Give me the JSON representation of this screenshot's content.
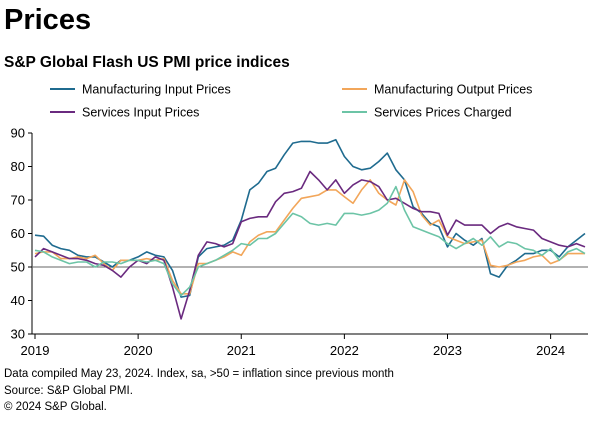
{
  "header": {
    "heading": "Prices",
    "chart_title": "S&P Global Flash US PMI price indices"
  },
  "footer": {
    "line1": "Data compiled May 23, 2024. Index, sa, >50 = inflation since previous month",
    "line2": "Source: S&P Global PMI.",
    "line3": "© 2024 S&P Global."
  },
  "chart_data": {
    "type": "line",
    "title": "S&P Global Flash US PMI price indices",
    "xlabel": "",
    "ylabel": "",
    "ylim": [
      30,
      90
    ],
    "yticks": [
      30,
      40,
      50,
      60,
      70,
      80,
      90
    ],
    "xlim": [
      "2019-01",
      "2024-05"
    ],
    "xtick_labels": [
      "2019",
      "2020",
      "2021",
      "2022",
      "2023",
      "2024"
    ],
    "reference_line": 50,
    "grid": false,
    "legend_position": "top",
    "x": [
      "2019-01",
      "2019-02",
      "2019-03",
      "2019-04",
      "2019-05",
      "2019-06",
      "2019-07",
      "2019-08",
      "2019-09",
      "2019-10",
      "2019-11",
      "2019-12",
      "2020-01",
      "2020-02",
      "2020-03",
      "2020-04",
      "2020-05",
      "2020-06",
      "2020-07",
      "2020-08",
      "2020-09",
      "2020-10",
      "2020-11",
      "2020-12",
      "2021-01",
      "2021-02",
      "2021-03",
      "2021-04",
      "2021-05",
      "2021-06",
      "2021-07",
      "2021-08",
      "2021-09",
      "2021-10",
      "2021-11",
      "2021-12",
      "2022-01",
      "2022-02",
      "2022-03",
      "2022-04",
      "2022-05",
      "2022-06",
      "2022-07",
      "2022-08",
      "2022-09",
      "2022-10",
      "2022-11",
      "2022-12",
      "2023-01",
      "2023-02",
      "2023-03",
      "2023-04",
      "2023-05",
      "2023-06",
      "2023-07",
      "2023-08",
      "2023-09",
      "2023-10",
      "2023-11",
      "2023-12",
      "2024-01",
      "2024-02",
      "2024-03",
      "2024-04",
      "2024-05"
    ],
    "series": [
      {
        "name": "Manufacturing Input Prices",
        "color": "#1f6b8f",
        "values": [
          59.5,
          59.2,
          56.5,
          55.5,
          55,
          53.5,
          53,
          53,
          51.5,
          50,
          52,
          52,
          53,
          54.5,
          53.5,
          53,
          49,
          41,
          41.5,
          53,
          55.5,
          56,
          56.5,
          58,
          64,
          73,
          75,
          78.5,
          79.5,
          83.5,
          87,
          87.5,
          87.5,
          87,
          87,
          88,
          83,
          80,
          79,
          79.5,
          81.5,
          84,
          79,
          76,
          68,
          66,
          63,
          62,
          56,
          60,
          58,
          56.5,
          58.5,
          48,
          47,
          50.5,
          52,
          54,
          54,
          55,
          55,
          53,
          56,
          58,
          60
        ]
      },
      {
        "name": "Manufacturing Output Prices",
        "color": "#f2a65a",
        "values": [
          54,
          54.5,
          54.5,
          52.5,
          52.5,
          53,
          52.5,
          53.5,
          51,
          49,
          52,
          52,
          52,
          52.5,
          52,
          52.5,
          46,
          42,
          42,
          51,
          51,
          52,
          53,
          54.5,
          53.5,
          57.5,
          59.5,
          60.5,
          60.5,
          64,
          67.5,
          70.5,
          71,
          71.5,
          73,
          73,
          71,
          69,
          73,
          76,
          72,
          70,
          68.5,
          76,
          72.5,
          65.5,
          62.5,
          64,
          59,
          58,
          57,
          57.5,
          58,
          50.5,
          50,
          50.5,
          51.5,
          52,
          53,
          53.5,
          51,
          52,
          54,
          54,
          54
        ]
      },
      {
        "name": "Services Input Prices",
        "color": "#6a2a7f",
        "values": [
          53,
          55.5,
          54.5,
          53.5,
          52.5,
          52.5,
          52,
          51,
          50.5,
          49,
          47,
          50,
          52,
          51,
          53,
          52,
          44,
          34.5,
          43,
          53.5,
          57.5,
          57,
          56,
          57,
          63.5,
          64.5,
          65,
          65,
          69.5,
          72,
          72.5,
          73.5,
          78.5,
          76,
          73,
          76,
          72,
          74.5,
          76,
          75.5,
          74,
          70,
          70.5,
          69,
          67.5,
          66.5,
          66.5,
          66,
          59.5,
          64,
          62.5,
          62.5,
          62.5,
          60,
          62,
          63,
          62,
          61.5,
          61,
          58.5,
          57.5,
          56.5,
          56,
          57,
          56
        ]
      },
      {
        "name": "Services Prices Charged",
        "color": "#6cc4a6",
        "values": [
          55,
          54.5,
          53,
          52,
          51,
          51.5,
          51.5,
          50,
          51.5,
          51.5,
          51,
          52,
          52,
          51.5,
          52,
          51,
          45,
          41.5,
          44,
          50,
          51,
          52,
          53.5,
          55,
          57,
          56.5,
          58.5,
          58.5,
          60,
          63,
          66,
          65,
          63,
          62.5,
          63,
          62.5,
          66,
          66,
          65.5,
          66,
          67,
          69,
          74,
          67,
          62,
          61,
          60,
          59,
          57,
          55.5,
          57,
          58.5,
          56.5,
          59,
          56,
          57.5,
          57,
          55.5,
          55,
          53.5,
          55.5,
          52,
          54.5,
          55.5,
          54
        ]
      }
    ]
  }
}
